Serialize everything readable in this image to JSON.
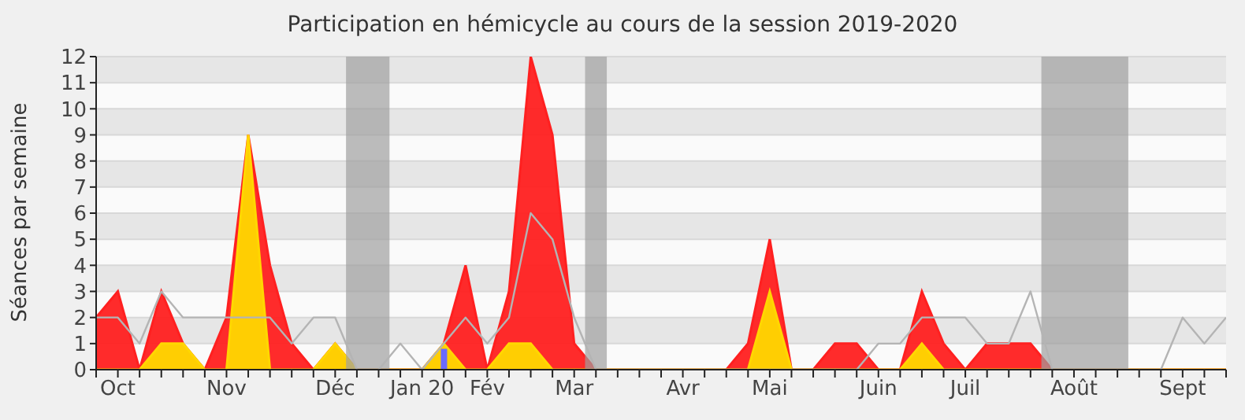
{
  "chart_data": {
    "type": "area",
    "title": "Participation en hémicycle au cours de la session 2019-2020",
    "ylabel": "Séances par semaine",
    "x": [
      "2019-09-30",
      "2019-10-07",
      "2019-10-14",
      "2019-10-21",
      "2019-10-28",
      "2019-11-04",
      "2019-11-11",
      "2019-11-18",
      "2019-11-25",
      "2019-12-02",
      "2019-12-09",
      "2019-12-16",
      "2019-12-23",
      "2019-12-30",
      "2020-01-06",
      "2020-01-13",
      "2020-01-20",
      "2020-01-27",
      "2020-02-03",
      "2020-02-10",
      "2020-02-17",
      "2020-02-24",
      "2020-03-02",
      "2020-03-09",
      "2020-03-16",
      "2020-03-23",
      "2020-03-30",
      "2020-04-06",
      "2020-04-13",
      "2020-04-20",
      "2020-04-27",
      "2020-05-04",
      "2020-05-11",
      "2020-05-18",
      "2020-05-25",
      "2020-06-01",
      "2020-06-08",
      "2020-06-15",
      "2020-06-22",
      "2020-06-29",
      "2020-07-06",
      "2020-07-13",
      "2020-07-20",
      "2020-07-27",
      "2020-08-03",
      "2020-08-10",
      "2020-08-17",
      "2020-08-24",
      "2020-08-31",
      "2020-09-07",
      "2020-09-14",
      "2020-09-21",
      "2020-09-28"
    ],
    "series": [
      {
        "color": "#ff2020",
        "values": [
          2,
          3,
          0,
          3,
          1,
          0,
          2,
          9,
          4,
          1,
          0,
          1,
          0,
          0,
          0,
          0,
          1,
          4,
          0,
          3,
          12,
          9,
          1,
          0,
          0,
          0,
          0,
          0,
          0,
          0,
          1,
          5,
          0,
          0,
          1,
          1,
          0,
          0,
          3,
          1,
          0,
          1,
          1,
          1,
          0,
          0,
          0,
          0,
          0,
          0,
          0,
          0,
          0
        ]
      },
      {
        "color": "#ffd700",
        "values": [
          0,
          0,
          0,
          1,
          1,
          0,
          0,
          9,
          0,
          0,
          0,
          1,
          0,
          0,
          0,
          0,
          1,
          0,
          0,
          1,
          1,
          0,
          0,
          0,
          0,
          0,
          0,
          0,
          0,
          0,
          0,
          3,
          0,
          0,
          0,
          0,
          0,
          0,
          1,
          0,
          0,
          0,
          0,
          0,
          0,
          0,
          0,
          0,
          0,
          0,
          0,
          0,
          0
        ]
      },
      {
        "type": "bar",
        "color": "#6a6aff",
        "values": [
          null,
          null,
          null,
          null,
          null,
          null,
          null,
          null,
          null,
          null,
          null,
          null,
          null,
          null,
          null,
          null,
          0.8,
          null,
          null,
          null,
          null,
          null,
          null,
          null,
          null,
          null,
          null,
          null,
          null,
          null,
          null,
          null,
          null,
          null,
          null,
          null,
          null,
          null,
          null,
          null,
          null,
          null,
          null,
          null,
          null,
          null,
          null,
          null,
          null,
          null,
          null,
          null,
          null
        ]
      },
      {
        "type": "line",
        "color": "#b4b4b4",
        "values": [
          2,
          2,
          1,
          3,
          2,
          2,
          2,
          2,
          2,
          1,
          2,
          2,
          0,
          0,
          1,
          0,
          1,
          2,
          1,
          2,
          6,
          5,
          2,
          0,
          0,
          0,
          0,
          0,
          0,
          0,
          0,
          0,
          0,
          0,
          0,
          0,
          1,
          1,
          2,
          2,
          2,
          1,
          1,
          3,
          0,
          0,
          0,
          0,
          0,
          0,
          2,
          1,
          2
        ]
      }
    ],
    "xlim": [
      "2019-09-30",
      "2020-09-28"
    ],
    "xticks": [
      {
        "value": "2019-09-30",
        "label": null
      },
      {
        "value": "2019-10-07",
        "label": "Oct"
      },
      {
        "value": "2019-10-14",
        "label": null
      },
      {
        "value": "2019-10-21",
        "label": null
      },
      {
        "value": "2019-10-28",
        "label": null
      },
      {
        "value": "2019-11-04",
        "label": null
      },
      {
        "value": "2019-11-11",
        "label": "Nov"
      },
      {
        "value": "2019-11-18",
        "label": null
      },
      {
        "value": "2019-11-25",
        "label": null
      },
      {
        "value": "2019-12-02",
        "label": null
      },
      {
        "value": "2019-12-09",
        "label": null
      },
      {
        "value": "2019-12-16",
        "label": "Déc"
      },
      {
        "value": "2019-12-23",
        "label": null
      },
      {
        "value": "2019-12-30",
        "label": null
      },
      {
        "value": "2020-01-06",
        "label": null
      },
      {
        "value": "2020-01-13",
        "label": "Jan 20"
      },
      {
        "value": "2020-01-20",
        "label": null
      },
      {
        "value": "2020-01-27",
        "label": null
      },
      {
        "value": "2020-02-03",
        "label": "Fév"
      },
      {
        "value": "2020-02-10",
        "label": null
      },
      {
        "value": "2020-02-17",
        "label": null
      },
      {
        "value": "2020-02-24",
        "label": null
      },
      {
        "value": "2020-03-02",
        "label": "Mar"
      },
      {
        "value": "2020-03-09",
        "label": null
      },
      {
        "value": "2020-03-16",
        "label": null
      },
      {
        "value": "2020-03-23",
        "label": null
      },
      {
        "value": "2020-03-30",
        "label": null
      },
      {
        "value": "2020-04-06",
        "label": "Avr"
      },
      {
        "value": "2020-04-13",
        "label": null
      },
      {
        "value": "2020-04-20",
        "label": null
      },
      {
        "value": "2020-04-27",
        "label": null
      },
      {
        "value": "2020-05-04",
        "label": "Mai"
      },
      {
        "value": "2020-05-11",
        "label": null
      },
      {
        "value": "2020-05-18",
        "label": null
      },
      {
        "value": "2020-05-25",
        "label": null
      },
      {
        "value": "2020-06-01",
        "label": null
      },
      {
        "value": "2020-06-08",
        "label": "Juin"
      },
      {
        "value": "2020-06-15",
        "label": null
      },
      {
        "value": "2020-06-22",
        "label": null
      },
      {
        "value": "2020-06-29",
        "label": null
      },
      {
        "value": "2020-07-06",
        "label": "Juil"
      },
      {
        "value": "2020-07-13",
        "label": null
      },
      {
        "value": "2020-07-20",
        "label": null
      },
      {
        "value": "2020-07-27",
        "label": null
      },
      {
        "value": "2020-08-03",
        "label": null
      },
      {
        "value": "2020-08-10",
        "label": "Août"
      },
      {
        "value": "2020-08-17",
        "label": null
      },
      {
        "value": "2020-08-24",
        "label": null
      },
      {
        "value": "2020-08-31",
        "label": null
      },
      {
        "value": "2020-09-07",
        "label": null
      },
      {
        "value": "2020-09-14",
        "label": "Sept"
      },
      {
        "value": "2020-09-21",
        "label": null
      },
      {
        "value": "2020-09-28",
        "label": null
      }
    ],
    "ylim": [
      0,
      12
    ],
    "yticks": [
      0,
      1,
      2,
      3,
      4,
      5,
      6,
      7,
      8,
      9,
      10,
      11,
      12
    ],
    "grid": "y",
    "bands": [
      {
        "axis": "x",
        "from": "2019-12-19T12:00",
        "to": "2020-01-02T12:00",
        "color": "#a0a0a0"
      },
      {
        "axis": "x",
        "from": "2020-03-05T12:00",
        "to": "2020-03-12T12:00",
        "color": "#a0a0a0"
      },
      {
        "axis": "x",
        "from": "2020-07-30T12:00",
        "to": "2020-08-27T12:00",
        "color": "#a0a0a0"
      }
    ]
  }
}
